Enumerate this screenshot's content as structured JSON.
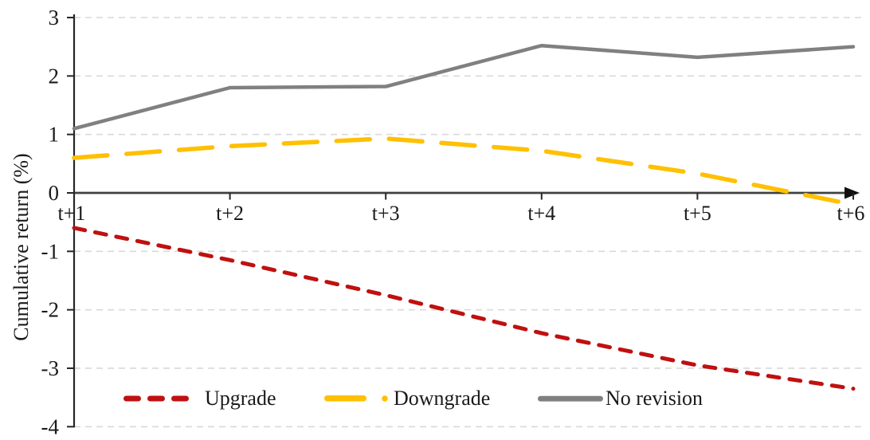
{
  "chart_data": {
    "type": "line",
    "title": "",
    "xlabel": "",
    "ylabel": "Cumulative return (%)",
    "categories": [
      "t+1",
      "t+2",
      "t+3",
      "t+4",
      "t+5",
      "t+6"
    ],
    "ylim": [
      -4,
      3
    ],
    "yticks": [
      3,
      2,
      1,
      0,
      -1,
      -2,
      -3,
      -4
    ],
    "grid": "horizontal dashed gridlines",
    "legend_position": "bottom inside plot",
    "series": [
      {
        "name": "Upgrade",
        "color": "#C01010",
        "line_style": "dashed",
        "values": [
          -0.6,
          -1.15,
          -1.75,
          -2.4,
          -2.95,
          -3.35
        ]
      },
      {
        "name": "Downgrade",
        "color": "#FFC000",
        "line_style": "long-dash",
        "values": [
          0.6,
          0.8,
          0.93,
          0.72,
          0.33,
          -0.2
        ]
      },
      {
        "name": "No revision",
        "color": "#808080",
        "line_style": "solid",
        "values": [
          1.1,
          1.8,
          1.82,
          2.52,
          2.32,
          2.5
        ]
      }
    ]
  },
  "colors": {
    "grid": "#D9D9D9",
    "x_axis": "#404040",
    "y_axis": "#262626",
    "arrow": "#111111",
    "text": "#1A1A1A"
  }
}
